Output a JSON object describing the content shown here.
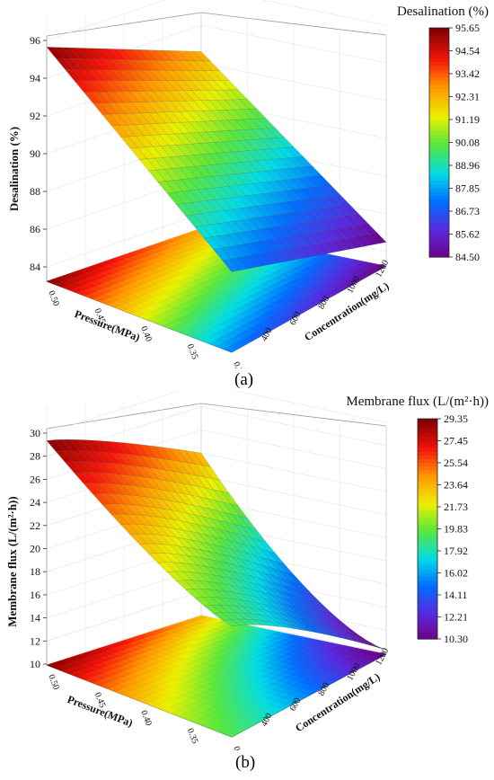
{
  "chart_data": [
    {
      "type": "surface",
      "panel_label": "(a)",
      "z_label": "Desalination (%)",
      "x_label": "Pressure(MPa)",
      "y_label": "Concentration(mg/L)",
      "legend_title": "Desalination (%)",
      "x_ticks": [
        "0.30",
        "0.35",
        "0.40",
        "0.45",
        "0.50"
      ],
      "y_ticks": [
        "400",
        "600",
        "800",
        "1000",
        "1200"
      ],
      "z_ticks": [
        "84",
        "86",
        "88",
        "90",
        "92",
        "94",
        "96"
      ],
      "zlim": [
        83.5,
        96
      ],
      "legend_ticks": [
        "95.65",
        "94.54",
        "93.42",
        "92.31",
        "91.19",
        "90.08",
        "88.96",
        "87.85",
        "86.73",
        "85.62",
        "84.50"
      ],
      "color_range": [
        84.5,
        95.65
      ],
      "corner_values": {
        "p050_c200": 95.65,
        "p050_c1200": 92.6,
        "p030_c200": 87.5,
        "p030_c1200": 84.5
      },
      "grid": true
    },
    {
      "type": "surface",
      "panel_label": "(b)",
      "z_label": "Membrane flux (L/(m²·h))",
      "x_label": "Pressure(MPa)",
      "y_label": "Concentration(mg/L)",
      "legend_title": "Membrane flux (L/(m²·h))",
      "x_ticks": [
        "0.30",
        "0.35",
        "0.40",
        "0.45",
        "0.50"
      ],
      "y_ticks": [
        "400",
        "600",
        "800",
        "1000",
        "1200"
      ],
      "z_ticks": [
        "10",
        "12",
        "14",
        "16",
        "18",
        "20",
        "22",
        "24",
        "26",
        "28",
        "30"
      ],
      "zlim": [
        9.5,
        30
      ],
      "legend_ticks": [
        "29.35",
        "27.45",
        "25.54",
        "23.64",
        "21.73",
        "19.83",
        "17.92",
        "16.02",
        "14.11",
        "12.21",
        "10.30"
      ],
      "color_range": [
        10.3,
        29.35
      ],
      "corner_values": {
        "p050_c200": 29.35,
        "p050_c1200": 24.0,
        "p030_c200": 19.5,
        "p030_c1200": 10.3
      },
      "grid": true
    }
  ]
}
